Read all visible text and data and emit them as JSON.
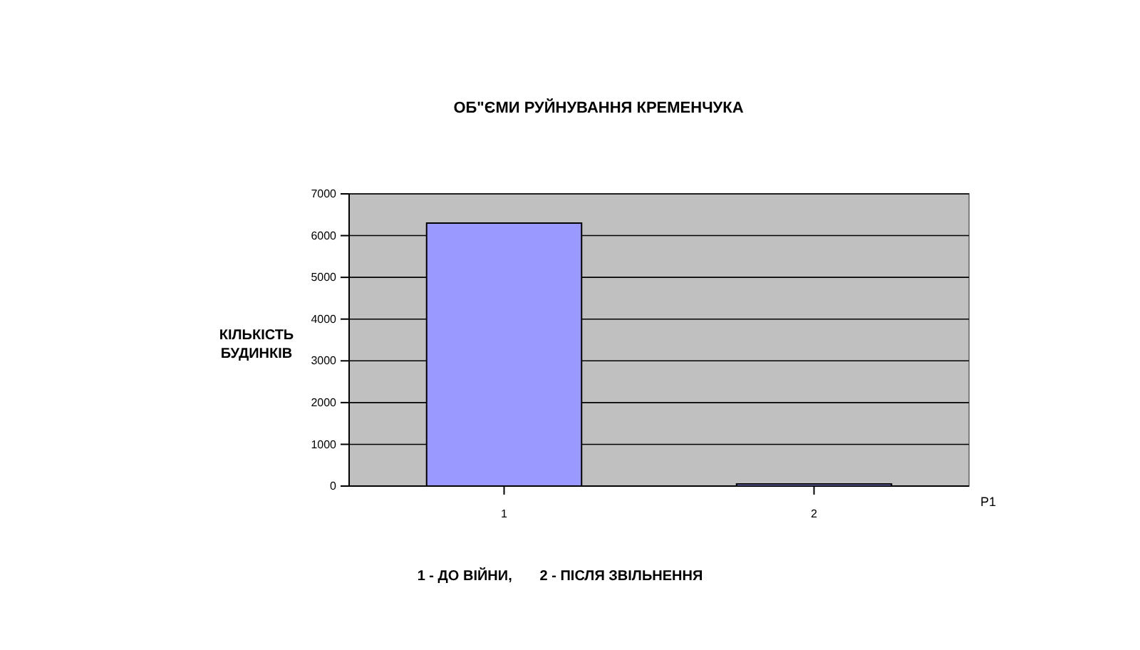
{
  "chart_data": {
    "type": "bar",
    "title": "ОБ\"ЄМИ РУЙНУВАННЯ КРЕМЕНЧУКА",
    "ylabel": "КІЛЬКІСТЬ\nБУДИНКІВ",
    "categories": [
      "1",
      "2"
    ],
    "series": [
      {
        "name": "P1",
        "color": "#9999ff",
        "values": [
          6300,
          50
        ]
      }
    ],
    "ylim": [
      0,
      7000
    ],
    "yticks": [
      0,
      1000,
      2000,
      3000,
      4000,
      5000,
      6000,
      7000
    ],
    "grid": "y",
    "annotations": [
      "1 - ДО ВІЙНИ,       2 - ПІСЛЯ ЗВІЛЬНЕННЯ"
    ]
  }
}
